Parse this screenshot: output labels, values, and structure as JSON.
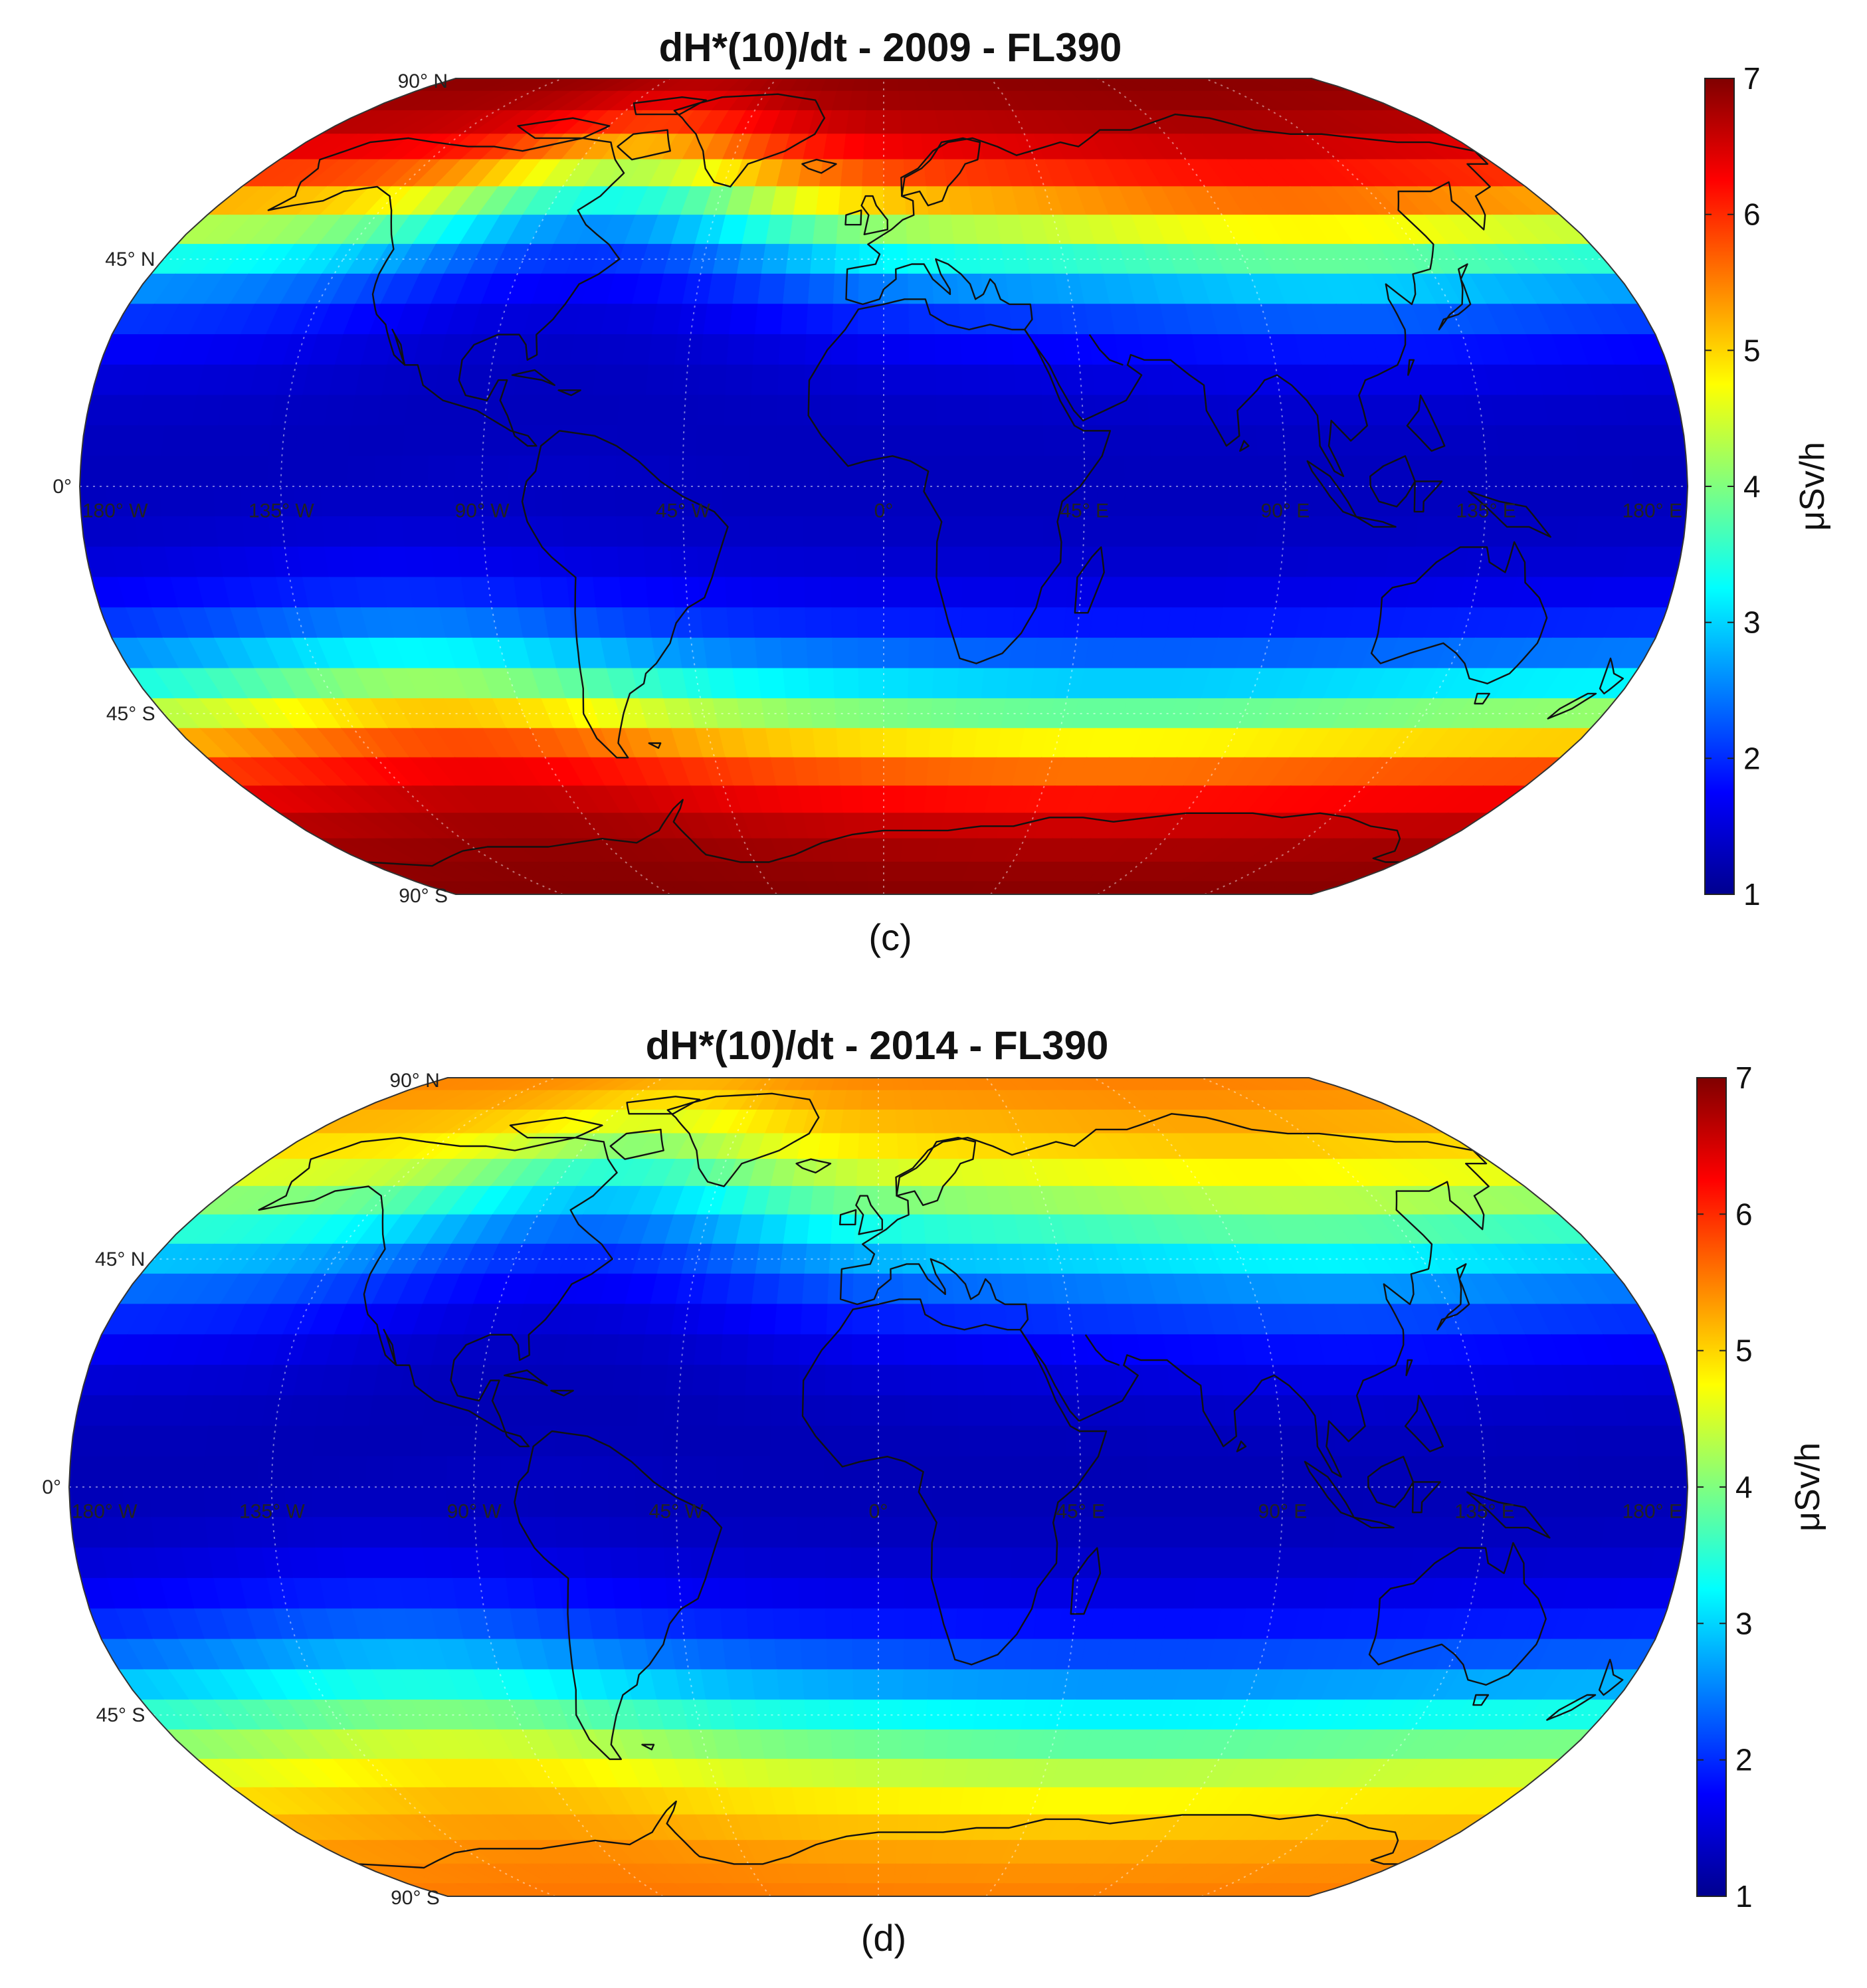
{
  "panels": [
    {
      "title": "dH*(10)/dt - 2009 - FL390",
      "caption": "(c)",
      "colorbar": {
        "label": "μSv/h",
        "ticks": [
          "1",
          "2",
          "3",
          "4",
          "5",
          "6",
          "7"
        ],
        "min": 1,
        "max": 7
      },
      "lat_labels": [
        "90° N",
        "45° N",
        "0°",
        "45° S",
        "90° S"
      ],
      "lon_labels": [
        "180° W",
        "135° W",
        "90° W",
        "45° W",
        "0°",
        "45° E",
        "90° E",
        "135° E",
        "180° E"
      ],
      "field": {
        "equator_min": 1.3,
        "polar_max": 7.0,
        "band_centre_north_deg": 50,
        "band_centre_south_deg": 45,
        "band_width_deg": 9
      }
    },
    {
      "title": "dH*(10)/dt - 2014 - FL390",
      "caption": "(d)",
      "colorbar": {
        "label": "μSv/h",
        "ticks": [
          "1",
          "2",
          "3",
          "4",
          "5",
          "6",
          "7"
        ],
        "min": 1,
        "max": 7
      },
      "lat_labels": [
        "90° N",
        "45° N",
        "0°",
        "45° S",
        "90° S"
      ],
      "lon_labels": [
        "180° W",
        "135° W",
        "90° W",
        "45° W",
        "0°",
        "45° E",
        "90° E",
        "135° E",
        "180° E"
      ],
      "field": {
        "equator_min": 1.2,
        "polar_max": 5.6,
        "band_centre_north_deg": 50,
        "band_centre_south_deg": 45,
        "band_width_deg": 11
      }
    }
  ],
  "colormap": "jet"
}
